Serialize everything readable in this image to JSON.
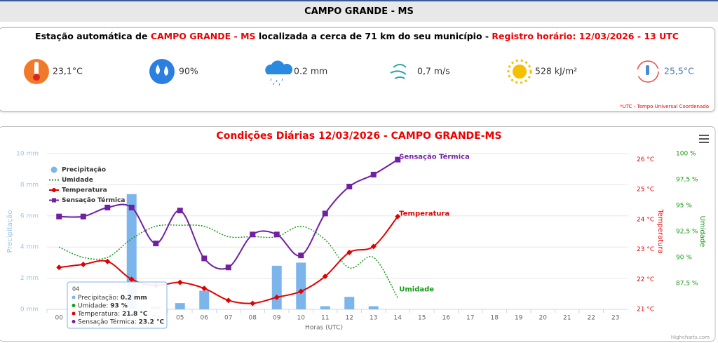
{
  "header": {
    "title": "CAMPO GRANDE - MS"
  },
  "station": {
    "prefix": "Estação automática de ",
    "city": "CAMPO GRANDE - MS",
    "middle": " localizada a cerca de 71 km do seu município - ",
    "record": "Registro horário: 12/03/2026 - 13 UTC"
  },
  "stats": [
    "23,1°C",
    "90%",
    "0.2 mm",
    "0,7 m/s",
    "528 kJ/m²",
    "25,5°C"
  ],
  "footnote": "*UTC - Tempo Universal Coordenado",
  "chart_data": {
    "type": "combo",
    "title": "Condições Diárias 12/03/2026 - CAMPO GRANDE-MS",
    "xlabel": "Horas (UTC)",
    "ylabel": "Precipitação",
    "y2label": "Temperatura",
    "y3label": "Umidade",
    "categories": [
      "00",
      "01",
      "02",
      "03",
      "04",
      "05",
      "06",
      "07",
      "08",
      "09",
      "10",
      "11",
      "12",
      "13",
      "14",
      "15",
      "16",
      "17",
      "18",
      "19",
      "20",
      "21",
      "22",
      "23"
    ],
    "ylim": [
      0,
      10
    ],
    "yticks": [
      {
        "value": 0,
        "label": "0 mm"
      },
      {
        "value": 2,
        "label": "2 mm"
      },
      {
        "value": 4,
        "label": "4 mm"
      },
      {
        "value": 6,
        "label": "6 mm"
      },
      {
        "value": 8,
        "label": "8 mm"
      },
      {
        "value": 10,
        "label": "10 mm"
      }
    ],
    "y2lim": [
      21,
      26.2
    ],
    "y2ticks": [
      {
        "value": 21,
        "label": "21 °C"
      },
      {
        "value": 22,
        "label": "22 °C"
      },
      {
        "value": 23,
        "label": "23 °C"
      },
      {
        "value": 24,
        "label": "24 °C"
      },
      {
        "value": 25,
        "label": "25 °C"
      },
      {
        "value": 26,
        "label": "26 °C"
      }
    ],
    "y3lim": [
      85,
      100
    ],
    "y3ticks": [
      {
        "value": 87.5,
        "label": "87,5 %"
      },
      {
        "value": 90,
        "label": "90 %"
      },
      {
        "value": 92.5,
        "label": "92,5 %"
      },
      {
        "value": 95,
        "label": "95 %"
      },
      {
        "value": 97.5,
        "label": "97,5 %"
      },
      {
        "value": 100,
        "label": "100 %"
      }
    ],
    "grid": true,
    "series": [
      {
        "name": "Precipitação",
        "kind": "bar",
        "axis": "y",
        "color": "#7cb5ec",
        "values": [
          0,
          0,
          0,
          7.4,
          0.2,
          0.4,
          1.2,
          0,
          0,
          2.8,
          3.0,
          0.2,
          0.8,
          0.2,
          0,
          null,
          null,
          null,
          null,
          null,
          null,
          null,
          null,
          null
        ]
      },
      {
        "name": "Umidade",
        "kind": "dotted",
        "axis": "y3",
        "color": "#1a9a1a",
        "values": [
          91.0,
          90.0,
          90.0,
          91.8,
          93,
          93.1,
          93,
          92,
          92,
          92,
          93,
          91.7,
          89.0,
          90,
          86.1,
          null,
          null,
          null,
          null,
          null,
          null,
          null,
          null,
          null
        ]
      },
      {
        "name": "Temperatura",
        "kind": "line",
        "marker": "diamond",
        "axis": "y2",
        "color": "#e00000",
        "values": [
          22.4,
          22.5,
          22.6,
          22.0,
          21.8,
          21.9,
          21.7,
          21.3,
          21.2,
          21.4,
          21.6,
          22.1,
          22.9,
          23.1,
          24.1,
          null,
          null,
          null,
          null,
          null,
          null,
          null,
          null,
          null
        ]
      },
      {
        "name": "Sensação Térmica",
        "kind": "line",
        "marker": "square",
        "axis": "y2",
        "color": "#7020a0",
        "values": [
          24.1,
          24.1,
          24.4,
          24.4,
          23.2,
          24.3,
          22.7,
          22.4,
          23.5,
          23.5,
          22.8,
          24.2,
          25.1,
          25.5,
          26.0,
          null,
          null,
          null,
          null,
          null,
          null,
          null,
          null,
          null
        ]
      }
    ],
    "tooltip": {
      "title": "04",
      "rows": [
        {
          "label": "Precipitação: ",
          "value": "0.2 mm"
        },
        {
          "label": "Umidade: ",
          "value": "93 %"
        },
        {
          "label": "Temperatura: ",
          "value": "21.8 °C"
        },
        {
          "label": "Sensação Térmica: ",
          "value": "23.2 °C"
        }
      ]
    },
    "credit": "Highcharts.com"
  }
}
